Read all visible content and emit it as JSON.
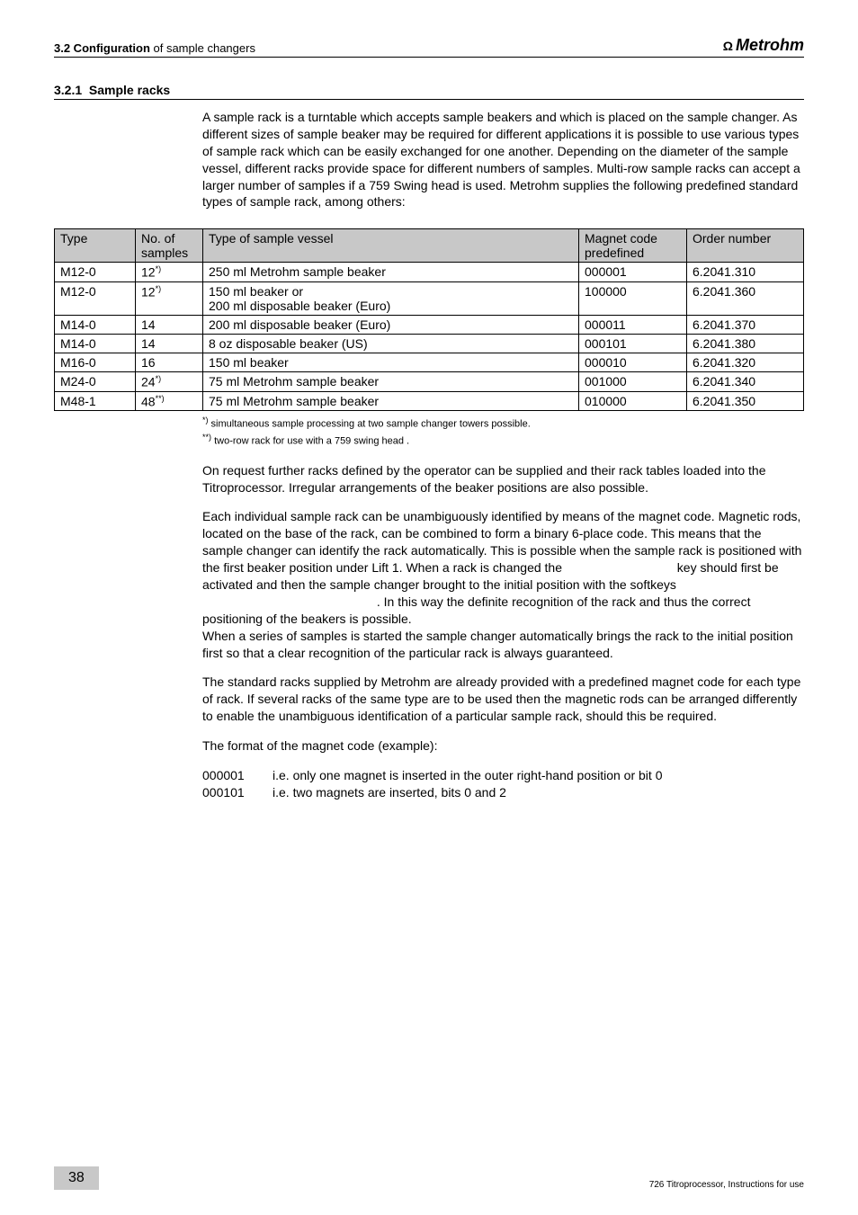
{
  "header": {
    "prefix": "3.2 Configuration",
    "suffix": " of sample changers",
    "logo_icon": "Ω",
    "logo_text": "Metrohm"
  },
  "section": {
    "number": "3.2.1",
    "title": "Sample racks"
  },
  "intro": "A sample rack is a turntable which accepts sample beakers and which is placed on the sample changer. As different sizes of sample beaker may be required for different applications it is possible to use various types of sample rack which can be easily exchanged for one another. Depending on the diameter of the sample vessel, different racks provide space for different numbers of samples. Multi-row sample racks can accept a larger number of samples if a 759 Swing head is used. Metrohm supplies the following predefined standard types of sample rack, among others:",
  "table": {
    "columns": [
      "Type",
      "No. of samples",
      "Type of sample vessel",
      "Magnet code predefined",
      "Order number"
    ],
    "rows": [
      {
        "type": "M12-0",
        "no": "12",
        "sup": "*)",
        "vessel": "250 ml Metrohm sample beaker",
        "code": "000001",
        "order": "6.2041.310"
      },
      {
        "type": "M12-0",
        "no": "12",
        "sup": "*)",
        "vessel": "150 ml beaker or\n200 ml disposable beaker (Euro)",
        "code": "100000",
        "order": "6.2041.360"
      },
      {
        "type": "M14-0",
        "no": "14",
        "sup": "",
        "vessel": "200 ml disposable beaker (Euro)",
        "code": "000011",
        "order": "6.2041.370"
      },
      {
        "type": "M14-0",
        "no": "14",
        "sup": "",
        "vessel": "8 oz disposable beaker (US)",
        "code": "000101",
        "order": "6.2041.380"
      },
      {
        "type": "M16-0",
        "no": "16",
        "sup": "",
        "vessel": "150 ml beaker",
        "code": "000010",
        "order": "6.2041.320"
      },
      {
        "type": "M24-0",
        "no": "24",
        "sup": "*)",
        "vessel": "75 ml Metrohm sample beaker",
        "code": "001000",
        "order": "6.2041.340"
      },
      {
        "type": "M48-1",
        "no": "48",
        "sup": "**)",
        "vessel": "75 ml Metrohm sample beaker",
        "code": "010000",
        "order": "6.2041.350"
      }
    ]
  },
  "footnotes": {
    "a_mark": "*)",
    "a_text": " simultaneous sample processing at two sample changer towers possible.",
    "b_mark": "**)",
    "b_text": " two-row rack for use with a 759 swing head ."
  },
  "para2": "On request further racks defined by the operator can be supplied and their rack tables loaded into the Titroprocessor. Irregular arrangements of the beaker positions are also possible.",
  "para3_a": "Each individual sample rack can be unambiguously identified by means of the magnet code. Magnetic rods, located on the base of the rack, can be combined to form a binary 6-place code. This means that the sample changer can identify the rack automatically. This is possible when the sample rack is positioned with the first beaker position under Lift 1. When a rack is changed the ",
  "para3_b": "key should first be activated",
  "para3_c": " and then the sample changer brought to the initial position with the softkeys ",
  "para3_d": ". In this way the definite recognition of the rack and thus the correct positioning of the beakers is possible.",
  "para3_e": "When a series of samples is started the sample changer automatically brings the rack to the initial position first so that a clear recognition of the particular rack is always guaranteed.",
  "para4": "The standard racks supplied by Metrohm are already provided with a predefined magnet code for each type of rack. If several racks of the same type are to be used then the magnetic rods can be arranged differently to enable the unambiguous identification of a particular sample rack, should this be required.",
  "para5": "The format of the magnet code (example):",
  "codes": [
    {
      "k": "000001",
      "v": "i.e. only one magnet is inserted in the outer right-hand position or bit 0"
    },
    {
      "k": "000101",
      "v": "i.e. two magnets are inserted, bits 0 and 2"
    }
  ],
  "footer": {
    "page": "38",
    "right": "726 Titroprocessor, Instructions for use"
  }
}
